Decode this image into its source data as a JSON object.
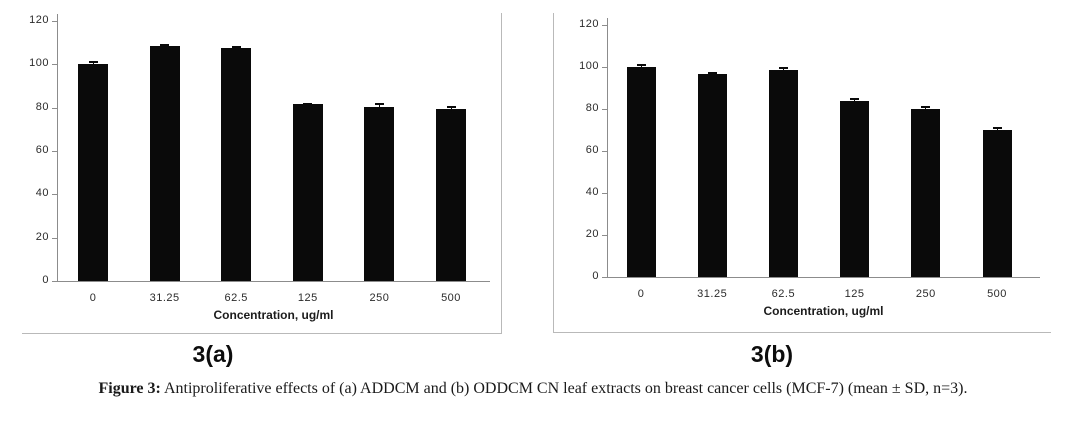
{
  "figure": {
    "caption_label": "Figure 3:",
    "caption_text": " Antiproliferative effects of (a) ADDCM and (b) ODDCM CN leaf extracts on breast cancer cells (MCF-7) (mean ± SD, n=3)."
  },
  "chart_data": [
    {
      "id": "a",
      "type": "bar",
      "panel_label": "3(a)",
      "title": "",
      "xlabel": "Concentration, ug/ml",
      "ylabel": "",
      "categories": [
        "0",
        "31.25",
        "62.5",
        "125",
        "250",
        "500"
      ],
      "values": [
        100,
        108.5,
        107.5,
        81.5,
        80.5,
        79.5
      ],
      "errors": [
        1,
        0.3,
        0.3,
        0.3,
        1,
        1
      ],
      "ylim": [
        0,
        120
      ],
      "yticks": [
        0,
        20,
        40,
        60,
        80,
        100,
        120
      ],
      "grid": false,
      "legend_position": "none"
    },
    {
      "id": "b",
      "type": "bar",
      "panel_label": "3(b)",
      "title": "",
      "xlabel": "Concentration, ug/ml",
      "ylabel": "",
      "categories": [
        "0",
        "31.25",
        "62.5",
        "125",
        "250",
        "500"
      ],
      "values": [
        100,
        96.5,
        98.5,
        84,
        80,
        70
      ],
      "errors": [
        0.8,
        0.8,
        0.8,
        0.8,
        0.8,
        0.8
      ],
      "ylim": [
        0,
        120
      ],
      "yticks": [
        0,
        20,
        40,
        60,
        80,
        100,
        120
      ],
      "grid": false,
      "legend_position": "none"
    }
  ],
  "colors": {
    "bar": "#0a0a0a",
    "axis": "#8c8c8c",
    "panel_border": "#b9b9b9",
    "tick_text": "#2b2b2b",
    "background": "#ffffff"
  }
}
